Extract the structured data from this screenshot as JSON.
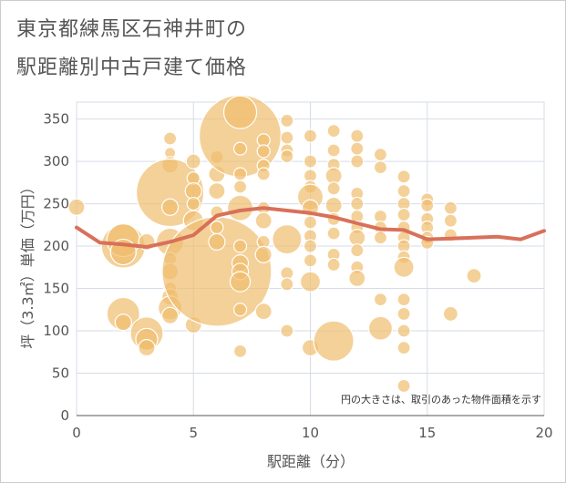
{
  "title_line1": "東京都練馬区石神井町の",
  "title_line2": "駅距離別中古戸建て価格",
  "colors": {
    "bubble": "#f0be6e",
    "line": "#d9705a",
    "grid": "#d6dde6",
    "text": "#555555"
  },
  "chart_data": {
    "type": "scatter",
    "title": "東京都練馬区石神井町の駅距離別中古戸建て価格",
    "xlabel": "駅距離（分）",
    "ylabel": "坪（3.3㎡）単価（万円）",
    "xlim": [
      0,
      20
    ],
    "ylim": [
      0,
      370
    ],
    "x_ticks": [
      "0",
      "5",
      "10",
      "15",
      "20"
    ],
    "y_ticks": [
      "0",
      "50",
      "100",
      "150",
      "200",
      "250",
      "300",
      "350"
    ],
    "grid": true,
    "annotation": "円の大きさは、取引のあった物件面積を示す",
    "bubbles": [
      {
        "x": 0,
        "y": 246,
        "s": 9
      },
      {
        "x": 2,
        "y": 200,
        "s": 24
      },
      {
        "x": 2,
        "y": 207,
        "s": 18
      },
      {
        "x": 2,
        "y": 193,
        "s": 14
      },
      {
        "x": 2,
        "y": 120,
        "s": 18
      },
      {
        "x": 2,
        "y": 110,
        "s": 9
      },
      {
        "x": 3,
        "y": 205,
        "s": 9
      },
      {
        "x": 3,
        "y": 97,
        "s": 18
      },
      {
        "x": 3,
        "y": 90,
        "s": 12
      },
      {
        "x": 3,
        "y": 80,
        "s": 9
      },
      {
        "x": 4,
        "y": 327,
        "s": 7
      },
      {
        "x": 4,
        "y": 310,
        "s": 6
      },
      {
        "x": 4,
        "y": 296,
        "s": 9
      },
      {
        "x": 4,
        "y": 263,
        "s": 37
      },
      {
        "x": 4,
        "y": 246,
        "s": 9
      },
      {
        "x": 4,
        "y": 205,
        "s": 15
      },
      {
        "x": 4,
        "y": 185,
        "s": 7
      },
      {
        "x": 4,
        "y": 170,
        "s": 9
      },
      {
        "x": 4,
        "y": 150,
        "s": 7
      },
      {
        "x": 4,
        "y": 140,
        "s": 9
      },
      {
        "x": 4,
        "y": 127,
        "s": 13
      },
      {
        "x": 4,
        "y": 118,
        "s": 9
      },
      {
        "x": 5,
        "y": 300,
        "s": 8
      },
      {
        "x": 5,
        "y": 280,
        "s": 7
      },
      {
        "x": 5,
        "y": 265,
        "s": 9
      },
      {
        "x": 5,
        "y": 250,
        "s": 7
      },
      {
        "x": 5,
        "y": 230,
        "s": 11
      },
      {
        "x": 5,
        "y": 107,
        "s": 9
      },
      {
        "x": 6,
        "y": 170,
        "s": 60
      },
      {
        "x": 6,
        "y": 305,
        "s": 7
      },
      {
        "x": 6,
        "y": 285,
        "s": 9
      },
      {
        "x": 6,
        "y": 265,
        "s": 9
      },
      {
        "x": 6,
        "y": 240,
        "s": 7
      },
      {
        "x": 6,
        "y": 222,
        "s": 7
      },
      {
        "x": 6,
        "y": 205,
        "s": 9
      },
      {
        "x": 7,
        "y": 330,
        "s": 45
      },
      {
        "x": 7,
        "y": 358,
        "s": 18
      },
      {
        "x": 7,
        "y": 315,
        "s": 7
      },
      {
        "x": 7,
        "y": 285,
        "s": 7
      },
      {
        "x": 7,
        "y": 270,
        "s": 7
      },
      {
        "x": 7,
        "y": 245,
        "s": 14
      },
      {
        "x": 7,
        "y": 200,
        "s": 7
      },
      {
        "x": 7,
        "y": 180,
        "s": 9
      },
      {
        "x": 7,
        "y": 170,
        "s": 9
      },
      {
        "x": 7,
        "y": 158,
        "s": 11
      },
      {
        "x": 7,
        "y": 125,
        "s": 7
      },
      {
        "x": 7,
        "y": 76,
        "s": 7
      },
      {
        "x": 8,
        "y": 325,
        "s": 7
      },
      {
        "x": 8,
        "y": 312,
        "s": 7
      },
      {
        "x": 8,
        "y": 295,
        "s": 7
      },
      {
        "x": 8,
        "y": 285,
        "s": 7
      },
      {
        "x": 8,
        "y": 245,
        "s": 7
      },
      {
        "x": 8,
        "y": 230,
        "s": 9
      },
      {
        "x": 8,
        "y": 205,
        "s": 7
      },
      {
        "x": 8,
        "y": 190,
        "s": 9
      },
      {
        "x": 8,
        "y": 123,
        "s": 9
      },
      {
        "x": 9,
        "y": 348,
        "s": 7
      },
      {
        "x": 9,
        "y": 328,
        "s": 7
      },
      {
        "x": 9,
        "y": 313,
        "s": 7
      },
      {
        "x": 9,
        "y": 306,
        "s": 7
      },
      {
        "x": 9,
        "y": 208,
        "s": 16
      },
      {
        "x": 9,
        "y": 168,
        "s": 7
      },
      {
        "x": 9,
        "y": 155,
        "s": 7
      },
      {
        "x": 9,
        "y": 100,
        "s": 7
      },
      {
        "x": 10,
        "y": 330,
        "s": 7
      },
      {
        "x": 10,
        "y": 300,
        "s": 7
      },
      {
        "x": 10,
        "y": 283,
        "s": 7
      },
      {
        "x": 10,
        "y": 270,
        "s": 7
      },
      {
        "x": 10,
        "y": 258,
        "s": 14
      },
      {
        "x": 10,
        "y": 245,
        "s": 9
      },
      {
        "x": 10,
        "y": 228,
        "s": 7
      },
      {
        "x": 10,
        "y": 212,
        "s": 7
      },
      {
        "x": 10,
        "y": 200,
        "s": 7
      },
      {
        "x": 10,
        "y": 183,
        "s": 7
      },
      {
        "x": 10,
        "y": 158,
        "s": 11
      },
      {
        "x": 10,
        "y": 80,
        "s": 9
      },
      {
        "x": 11,
        "y": 336,
        "s": 7
      },
      {
        "x": 11,
        "y": 313,
        "s": 7
      },
      {
        "x": 11,
        "y": 296,
        "s": 7
      },
      {
        "x": 11,
        "y": 283,
        "s": 9
      },
      {
        "x": 11,
        "y": 268,
        "s": 7
      },
      {
        "x": 11,
        "y": 248,
        "s": 9
      },
      {
        "x": 11,
        "y": 232,
        "s": 7
      },
      {
        "x": 11,
        "y": 215,
        "s": 7
      },
      {
        "x": 11,
        "y": 190,
        "s": 7
      },
      {
        "x": 11,
        "y": 178,
        "s": 7
      },
      {
        "x": 11,
        "y": 88,
        "s": 22
      },
      {
        "x": 12,
        "y": 330,
        "s": 7
      },
      {
        "x": 12,
        "y": 315,
        "s": 7
      },
      {
        "x": 12,
        "y": 300,
        "s": 7
      },
      {
        "x": 12,
        "y": 262,
        "s": 7
      },
      {
        "x": 12,
        "y": 250,
        "s": 7
      },
      {
        "x": 12,
        "y": 235,
        "s": 7
      },
      {
        "x": 12,
        "y": 222,
        "s": 7
      },
      {
        "x": 12,
        "y": 210,
        "s": 9
      },
      {
        "x": 12,
        "y": 195,
        "s": 7
      },
      {
        "x": 12,
        "y": 175,
        "s": 7
      },
      {
        "x": 12,
        "y": 162,
        "s": 9
      },
      {
        "x": 13,
        "y": 308,
        "s": 7
      },
      {
        "x": 13,
        "y": 293,
        "s": 7
      },
      {
        "x": 13,
        "y": 235,
        "s": 7
      },
      {
        "x": 13,
        "y": 222,
        "s": 7
      },
      {
        "x": 13,
        "y": 210,
        "s": 7
      },
      {
        "x": 13,
        "y": 137,
        "s": 7
      },
      {
        "x": 13,
        "y": 103,
        "s": 13
      },
      {
        "x": 14,
        "y": 282,
        "s": 7
      },
      {
        "x": 14,
        "y": 265,
        "s": 7
      },
      {
        "x": 14,
        "y": 250,
        "s": 7
      },
      {
        "x": 14,
        "y": 237,
        "s": 7
      },
      {
        "x": 14,
        "y": 222,
        "s": 7
      },
      {
        "x": 14,
        "y": 210,
        "s": 7
      },
      {
        "x": 14,
        "y": 200,
        "s": 7
      },
      {
        "x": 14,
        "y": 187,
        "s": 7
      },
      {
        "x": 14,
        "y": 175,
        "s": 11
      },
      {
        "x": 14,
        "y": 137,
        "s": 7
      },
      {
        "x": 14,
        "y": 120,
        "s": 7
      },
      {
        "x": 14,
        "y": 100,
        "s": 7
      },
      {
        "x": 14,
        "y": 80,
        "s": 7
      },
      {
        "x": 14,
        "y": 35,
        "s": 7
      },
      {
        "x": 15,
        "y": 255,
        "s": 7
      },
      {
        "x": 15,
        "y": 248,
        "s": 7
      },
      {
        "x": 15,
        "y": 232,
        "s": 7
      },
      {
        "x": 15,
        "y": 222,
        "s": 7
      },
      {
        "x": 15,
        "y": 210,
        "s": 7
      },
      {
        "x": 15,
        "y": 204,
        "s": 7
      },
      {
        "x": 16,
        "y": 245,
        "s": 7
      },
      {
        "x": 16,
        "y": 230,
        "s": 7
      },
      {
        "x": 16,
        "y": 213,
        "s": 7
      },
      {
        "x": 16,
        "y": 120,
        "s": 8
      },
      {
        "x": 17,
        "y": 165,
        "s": 8
      }
    ],
    "series": [
      {
        "type": "line",
        "x": [
          0,
          1,
          2,
          3,
          4,
          5,
          6,
          7,
          8,
          9,
          10,
          11,
          12,
          13,
          14,
          15,
          16,
          17,
          18,
          19,
          20
        ],
        "y": [
          222,
          204,
          202,
          199,
          205,
          213,
          236,
          242,
          245,
          242,
          239,
          234,
          227,
          220,
          219,
          208,
          209,
          210,
          211,
          208,
          218
        ]
      }
    ]
  }
}
